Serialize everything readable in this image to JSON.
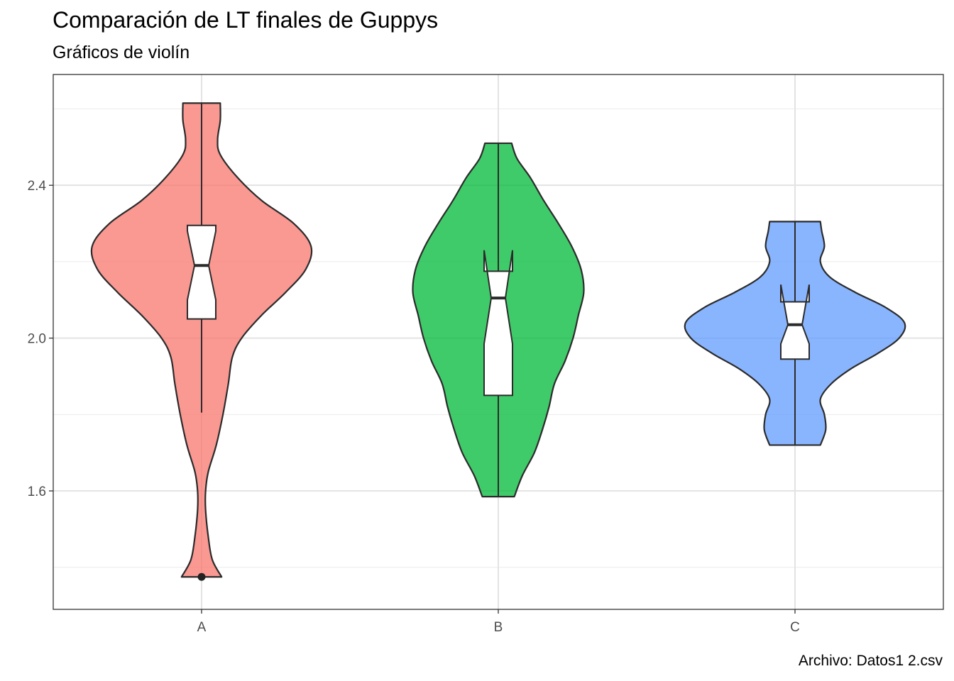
{
  "chart_data": {
    "type": "violin",
    "title": "Comparación de LT finales de Guppys",
    "subtitle": "Gráficos de violín",
    "caption": "Archivo: Datos1 2.csv",
    "xlabel": "",
    "ylabel": "",
    "ylim": [
      1.29,
      2.69
    ],
    "yticks": [
      "1.6",
      "2.0",
      "2.4"
    ],
    "ytick_values": [
      1.6,
      2.0,
      2.4
    ],
    "y_minor_ticks": [
      1.4,
      1.8,
      2.2,
      2.6
    ],
    "grid": true,
    "categories": [
      "A",
      "B",
      "C"
    ],
    "groups": [
      {
        "name": "A",
        "color": "#F8766D",
        "min": 1.375,
        "max": 2.615,
        "q1": 2.05,
        "median": 2.19,
        "q3": 2.295,
        "notch_low": 2.1,
        "notch_high": 2.28,
        "whisker_low": 1.805,
        "whisker_high": 2.615,
        "outliers": [
          1.375
        ],
        "density": [
          [
            1.375,
            0.15
          ],
          [
            1.42,
            0.08
          ],
          [
            1.48,
            0.05
          ],
          [
            1.55,
            0.03
          ],
          [
            1.6,
            0.03
          ],
          [
            1.65,
            0.05
          ],
          [
            1.72,
            0.11
          ],
          [
            1.8,
            0.16
          ],
          [
            1.88,
            0.2
          ],
          [
            1.95,
            0.23
          ],
          [
            2.0,
            0.3
          ],
          [
            2.06,
            0.45
          ],
          [
            2.12,
            0.63
          ],
          [
            2.18,
            0.78
          ],
          [
            2.24,
            0.82
          ],
          [
            2.3,
            0.69
          ],
          [
            2.36,
            0.45
          ],
          [
            2.42,
            0.27
          ],
          [
            2.48,
            0.14
          ],
          [
            2.52,
            0.12
          ],
          [
            2.57,
            0.14
          ],
          [
            2.615,
            0.14
          ]
        ]
      },
      {
        "name": "B",
        "color": "#00BA38",
        "min": 1.585,
        "max": 2.51,
        "q1": 1.85,
        "median": 2.105,
        "q3": 2.175,
        "notch_low": 1.985,
        "notch_high": 2.23,
        "whisker_low": 1.585,
        "whisker_high": 2.51,
        "outliers": [],
        "density": [
          [
            1.585,
            0.12
          ],
          [
            1.64,
            0.18
          ],
          [
            1.7,
            0.27
          ],
          [
            1.76,
            0.33
          ],
          [
            1.82,
            0.38
          ],
          [
            1.88,
            0.42
          ],
          [
            1.94,
            0.5
          ],
          [
            2.0,
            0.56
          ],
          [
            2.06,
            0.6
          ],
          [
            2.12,
            0.64
          ],
          [
            2.18,
            0.62
          ],
          [
            2.24,
            0.55
          ],
          [
            2.3,
            0.45
          ],
          [
            2.36,
            0.34
          ],
          [
            2.42,
            0.24
          ],
          [
            2.47,
            0.14
          ],
          [
            2.51,
            0.1
          ]
        ]
      },
      {
        "name": "C",
        "color": "#619CFF",
        "min": 1.72,
        "max": 2.305,
        "q1": 1.945,
        "median": 2.035,
        "q3": 2.095,
        "notch_low": 1.985,
        "notch_high": 2.14,
        "whisker_low": 1.72,
        "whisker_high": 2.305,
        "outliers": [],
        "density": [
          [
            1.72,
            0.19
          ],
          [
            1.76,
            0.23
          ],
          [
            1.8,
            0.22
          ],
          [
            1.84,
            0.19
          ],
          [
            1.88,
            0.27
          ],
          [
            1.92,
            0.42
          ],
          [
            1.96,
            0.62
          ],
          [
            2.0,
            0.78
          ],
          [
            2.04,
            0.82
          ],
          [
            2.08,
            0.68
          ],
          [
            2.12,
            0.45
          ],
          [
            2.16,
            0.26
          ],
          [
            2.2,
            0.19
          ],
          [
            2.24,
            0.22
          ],
          [
            2.28,
            0.2
          ],
          [
            2.305,
            0.19
          ]
        ]
      }
    ]
  }
}
